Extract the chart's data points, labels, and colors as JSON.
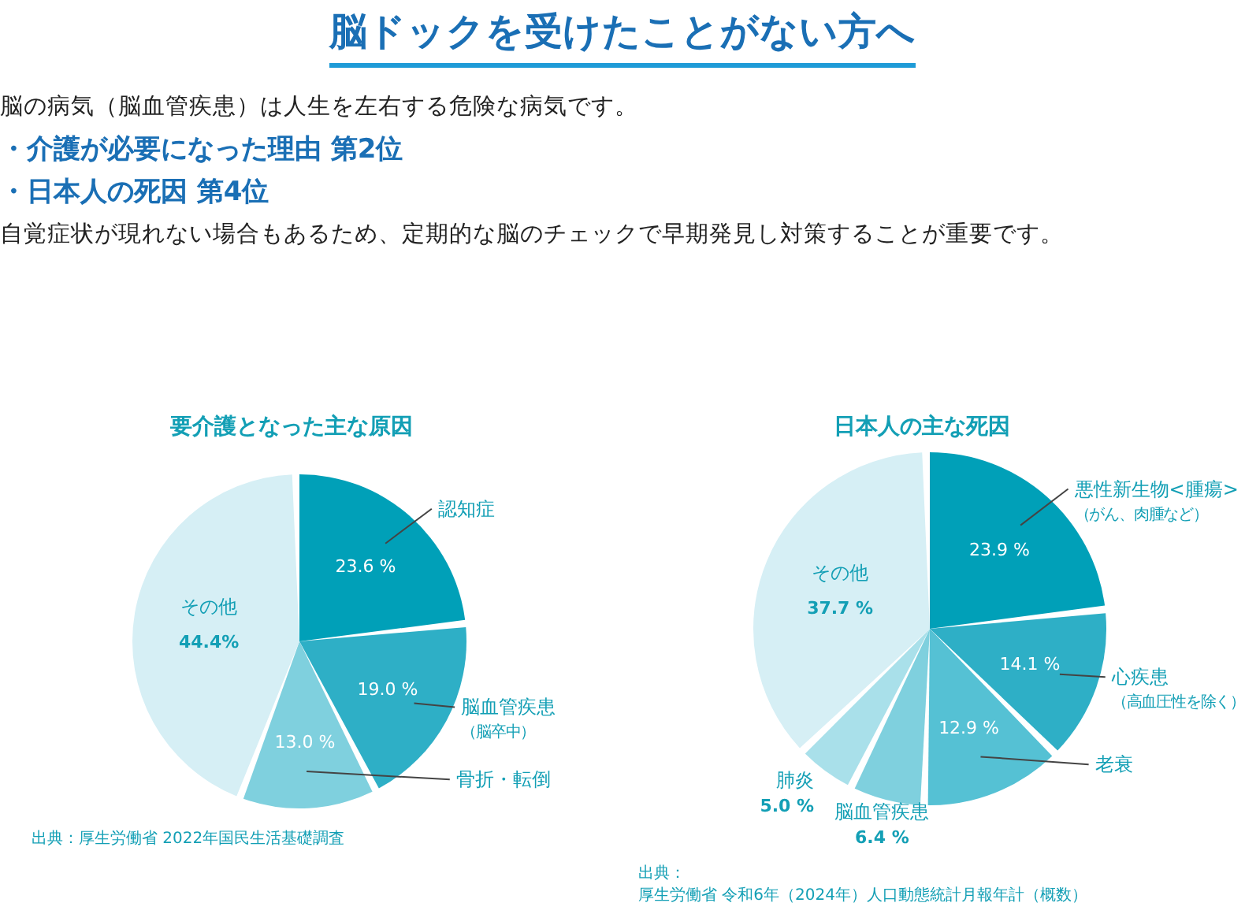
{
  "chart_data": [
    {
      "type": "other",
      "title": "脳ドックを受けたことがない方へ",
      "annotations": [
        "脳の病気（脳血管疾患）は人生を左右する危険な病気です。",
        "・介護が必要になった理由 第2位",
        "・日本人の死因 第4位",
        "自覚症状が現れない場合もあるため、定期的な脳のチェックで早期発見し対策することが重要です。"
      ]
    },
    {
      "type": "pie",
      "title": "要介護となった主な原因",
      "categories": [
        "認知症",
        "脳血管疾患（脳卒中）",
        "骨折・転倒",
        "その他"
      ],
      "values": [
        23.6,
        19.0,
        13.0,
        44.4
      ],
      "value_labels": [
        "23.6 %",
        "19.0 %",
        "13.0 %",
        "44.4%"
      ],
      "colors": [
        "#00a0b8",
        "#2eafc6",
        "#7fd0de",
        "#d6eff5"
      ],
      "annotations": [
        "出典：厚生労働省 2022年国民生活基礎調査"
      ]
    },
    {
      "type": "pie",
      "title": "日本人の主な死因",
      "categories": [
        "悪性新生物<腫瘍>（がん、肉腫など）",
        "心疾患（高血圧性を除く）",
        "老衰",
        "脳血管疾患",
        "肺炎",
        "その他"
      ],
      "values": [
        23.9,
        14.1,
        12.9,
        6.4,
        5.0,
        37.7
      ],
      "value_labels": [
        "23.9 %",
        "14.1 %",
        "12.9 %",
        "6.4 %",
        "5.0 %",
        "37.7 %"
      ],
      "colors": [
        "#00a0b8",
        "#2eafc6",
        "#55c1d4",
        "#7fd0de",
        "#a9e0ea",
        "#d6eff5"
      ],
      "annotations": [
        "出典：",
        "厚生労働省 令和6年（2024年）人口動態統計月報年計（概数）"
      ]
    }
  ]
}
